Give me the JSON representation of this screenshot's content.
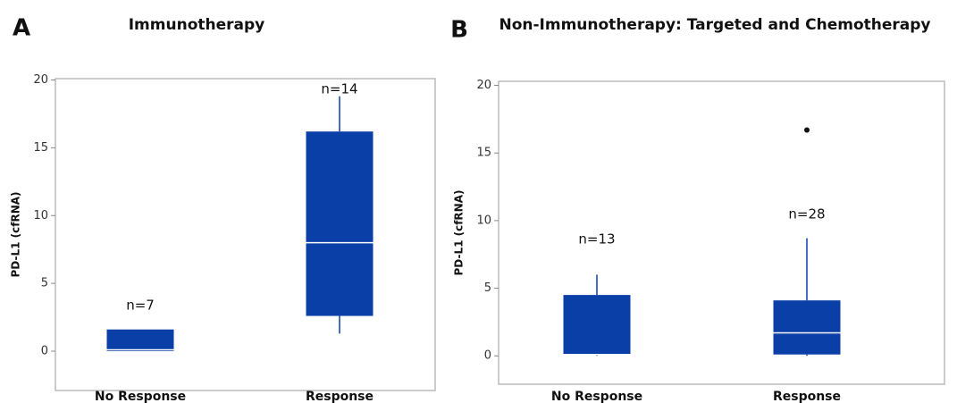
{
  "chart_data": [
    {
      "type": "box",
      "panel": "A",
      "title": "Immunotherapy",
      "ylabel": "PD-L1 (cfRNA)",
      "categories": [
        "No Response",
        "Response"
      ],
      "color": "#0b3fa8",
      "ylim": [
        -2.9,
        20.1
      ],
      "yticks": [
        0,
        5,
        10,
        15,
        20
      ],
      "boxes": [
        {
          "min": 0,
          "q1": 0,
          "median": 0.1,
          "q3": 1.6,
          "max": 1.6,
          "label": "n=7"
        },
        {
          "min": 1.3,
          "q1": 2.6,
          "median": 8.0,
          "q3": 16.2,
          "max": 18.8,
          "label": "n=14"
        }
      ]
    },
    {
      "type": "box",
      "panel": "B",
      "title": "Non-Immunotherapy: Targeted and Chemotherapy",
      "ylabel": "PD-L1 (cfRNA)",
      "categories": [
        "No Response",
        "Response"
      ],
      "color": "#0b3fa8",
      "ylim": [
        -2.1,
        20.3
      ],
      "yticks": [
        0,
        5,
        10,
        15,
        20
      ],
      "boxes": [
        {
          "min": 0,
          "q1": 0.05,
          "median": 0.1,
          "q3": 4.5,
          "max": 6.0,
          "label": "n=13"
        },
        {
          "min": 0,
          "q1": 0.1,
          "median": 1.7,
          "q3": 4.1,
          "max": 8.7,
          "outliers": [
            16.7
          ],
          "label": "n=28"
        }
      ]
    }
  ]
}
